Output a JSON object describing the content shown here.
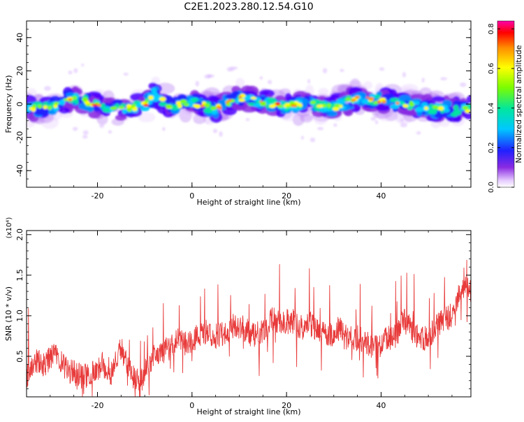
{
  "title": "C2E1.2023.280.12.54.G10",
  "chart_data": [
    {
      "type": "heatmap",
      "xlabel": "Height of straight line (km)",
      "ylabel": "Frequency (Hz)",
      "xlim": [
        -35,
        59
      ],
      "ylim": [
        -50,
        50
      ],
      "xticks": [
        -20,
        0,
        20,
        40
      ],
      "yticks": [
        -40,
        -20,
        0,
        20,
        40
      ],
      "ridge": {
        "x": [
          -35,
          -30,
          -25,
          -20,
          -15,
          -10,
          -8,
          -5,
          0,
          5,
          10,
          15,
          20,
          25,
          30,
          35,
          40,
          45,
          50,
          55,
          59
        ],
        "y": [
          -3,
          -2,
          4,
          -1,
          -3,
          -1,
          6,
          -1,
          1,
          -3,
          4,
          1,
          -1,
          0,
          -2,
          4,
          2,
          0,
          -2,
          -4,
          -3
        ]
      },
      "colorbar": {
        "label": "Normalized spectral amplitude",
        "range": [
          0.0,
          0.84
        ],
        "ticks": [
          0.0,
          0.2,
          0.4,
          0.6,
          0.8
        ]
      }
    },
    {
      "type": "line",
      "xlabel": "Height of straight line (km)",
      "ylabel": "SNR (10 * v/v)",
      "yunit": "(x10⁴)",
      "xlim": [
        -35,
        59
      ],
      "ylim": [
        0.0,
        2.05
      ],
      "xticks": [
        -20,
        0,
        20,
        40
      ],
      "yticks": [
        0.5,
        1.0,
        1.5,
        2.0
      ],
      "color": "#e83a3a",
      "series": [
        {
          "x": [
            -35,
            -33,
            -31,
            -29,
            -27,
            -25,
            -23,
            -21,
            -19,
            -17,
            -15,
            -13,
            -11,
            -9,
            -7,
            -5,
            -3,
            -1,
            1,
            3,
            5,
            7,
            9,
            11,
            13,
            15,
            17,
            19,
            21,
            23,
            25,
            27,
            29,
            31,
            33,
            35,
            37,
            39,
            41,
            43,
            45,
            47,
            49,
            51,
            53,
            55,
            57,
            59
          ],
          "y": [
            0.25,
            0.45,
            0.4,
            0.55,
            0.35,
            0.3,
            0.25,
            0.3,
            0.4,
            0.3,
            0.6,
            0.35,
            0.15,
            0.45,
            0.55,
            0.6,
            0.7,
            0.65,
            0.75,
            0.8,
            0.75,
            0.8,
            0.9,
            0.85,
            0.75,
            0.8,
            0.95,
            0.9,
            0.95,
            0.85,
            0.9,
            0.8,
            0.75,
            0.85,
            0.7,
            0.75,
            0.65,
            0.6,
            0.7,
            0.75,
            0.95,
            0.75,
            0.7,
            0.8,
            0.95,
            1.0,
            1.35,
            1.3
          ]
        }
      ]
    }
  ]
}
